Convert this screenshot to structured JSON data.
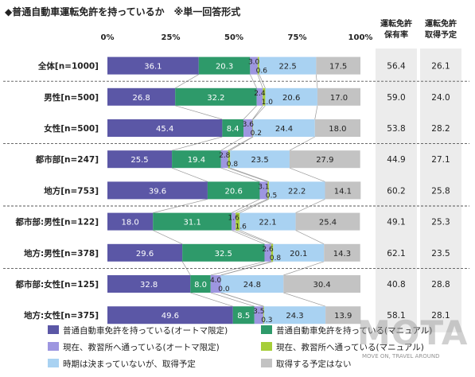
{
  "colors": {
    "s0": "#5b57a6",
    "s1": "#2e9a6a",
    "s2": "#9d96e0",
    "s3": "#a6ce39",
    "s4": "#a9d2f2",
    "s5": "#c3c3c3",
    "dark_text": "#ffffff",
    "light_text": "#222222",
    "stat_bg": "#ececec"
  },
  "chart_data": {
    "type": "bar",
    "orientation": "horizontal-stacked-100",
    "title": "◆普通自動車運転免許を持っているか　※単一回答形式",
    "x_ticks": [
      "0%",
      "25%",
      "50%",
      "75%",
      "100%"
    ],
    "xlim": [
      0,
      100
    ],
    "categories": [
      "全体[n=1000]",
      "男性[n=500]",
      "女性[n=500]",
      "都市部[n=247]",
      "地方[n=753]",
      "都市部:男性[n=122]",
      "地方:男性[n=378]",
      "都市部:女性[n=125]",
      "地方:女性[n=375]"
    ],
    "series": [
      {
        "name": "普通自動車免許を持っている(オートマ限定)",
        "values": [
          36.1,
          26.8,
          45.4,
          25.5,
          39.6,
          18.0,
          29.6,
          32.8,
          49.6
        ],
        "labels": [
          "36.1",
          "26.8",
          "45.4",
          "25.5",
          "39.6",
          "18.0",
          "29.6",
          "32.8",
          "49.6"
        ]
      },
      {
        "name": "普通自動車免許を持っている(マニュアル)",
        "values": [
          20.3,
          32.2,
          8.4,
          19.4,
          20.6,
          31.1,
          32.5,
          8.0,
          8.5
        ],
        "labels": [
          "20.3",
          "32.2",
          "8.4",
          "19.4",
          "20.6",
          "31.1",
          "32.5",
          "8.0",
          "8.5"
        ]
      },
      {
        "name": "現在、教習所へ通っている(オートマ限定)",
        "values": [
          3.0,
          2.4,
          3.6,
          2.8,
          3.1,
          1.6,
          2.6,
          4.0,
          3.5
        ],
        "labels": [
          "3.0",
          "2.4",
          "3.6",
          "2.8",
          "3.1",
          "1.6",
          "2.6",
          "4.0",
          "3.5"
        ]
      },
      {
        "name": "現在、教習所へ通っている(マニュアル)",
        "values": [
          0.6,
          1.0,
          0.2,
          0.8,
          0.5,
          1.6,
          0.8,
          0.0,
          0.3
        ],
        "labels": [
          "0.6",
          "1.0",
          "0.2",
          "0.8",
          "0.5",
          "1.6",
          "0.8",
          "0.0",
          "0.3"
        ]
      },
      {
        "name": "時期は決まっていないが、取得予定",
        "values": [
          22.5,
          20.6,
          24.4,
          23.5,
          22.2,
          22.1,
          20.1,
          24.8,
          24.3
        ],
        "labels": [
          "22.5",
          "20.6",
          "24.4",
          "23.5",
          "22.2",
          "22.1",
          "20.1",
          "24.8",
          "24.3"
        ]
      },
      {
        "name": "取得する予定はない",
        "values": [
          17.5,
          17.0,
          18.0,
          27.9,
          14.1,
          25.4,
          14.3,
          30.4,
          13.9
        ],
        "labels": [
          "17.5",
          "17.0",
          "18.0",
          "27.9",
          "14.1",
          "25.4",
          "14.3",
          "30.4",
          "13.9"
        ]
      }
    ],
    "stat_columns": [
      {
        "header": [
          "運転免許",
          "保有率"
        ],
        "values": [
          "56.4",
          "59.0",
          "53.8",
          "44.9",
          "60.2",
          "49.1",
          "62.1",
          "40.8",
          "58.1"
        ]
      },
      {
        "header": [
          "運転免許",
          "取得予定"
        ],
        "values": [
          "26.1",
          "24.0",
          "28.2",
          "27.1",
          "25.8",
          "25.3",
          "23.5",
          "28.8",
          "28.1"
        ]
      }
    ],
    "group_separators_after": [
      0,
      2,
      4,
      6
    ],
    "legend": [
      [
        "普通自動車免許を持っている(オートマ限定)",
        "普通自動車免許を持っている(マニュアル)"
      ],
      [
        "現在、教習所へ通っている(オートマ限定)",
        "現在、教習所へ通っている(マニュアル)"
      ],
      [
        "時期は決まっていないが、取得予定",
        "取得する予定はない"
      ]
    ],
    "legend_placement": "bottom",
    "grid": false
  },
  "watermark": {
    "logo": "MOTA",
    "tagline": "MOVE ON, TRAVEL AROUND"
  }
}
